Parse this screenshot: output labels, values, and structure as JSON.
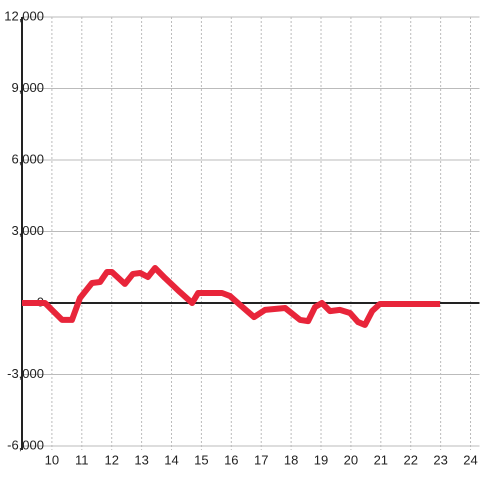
{
  "chart_data": {
    "type": "line",
    "x": [
      9,
      9.77,
      10.34,
      10.67,
      10.94,
      11.34,
      11.61,
      11.84,
      12.01,
      12.44,
      12.71,
      12.95,
      13.21,
      13.45,
      13.78,
      14.28,
      14.69,
      14.89,
      15.69,
      15.96,
      16.29,
      16.76,
      17.13,
      17.8,
      18.3,
      18.57,
      18.8,
      19.03,
      19.3,
      19.63,
      19.97,
      20.24,
      20.47,
      20.71,
      20.97,
      22.98
    ],
    "series": [
      {
        "color": "#e8253a",
        "values": [
          0,
          0,
          -710,
          -710,
          210,
          840,
          880,
          1300,
          1300,
          800,
          1220,
          1260,
          1090,
          1470,
          1050,
          460,
          0,
          420,
          420,
          290,
          -80,
          -590,
          -290,
          -210,
          -710,
          -760,
          -170,
          0,
          -340,
          -290,
          -420,
          -800,
          -920,
          -340,
          -40,
          -40
        ]
      }
    ],
    "xlim": [
      9,
      24.3
    ],
    "xticks": [
      10,
      11,
      12,
      13,
      14,
      15,
      16,
      17,
      18,
      19,
      20,
      21,
      22,
      23,
      24
    ],
    "ylim": [
      -6000,
      12000
    ],
    "yticks": [
      {
        "value": 12000,
        "label": "12,000"
      },
      {
        "value": 9000,
        "label": "9,000"
      },
      {
        "value": 6000,
        "label": "6,000"
      },
      {
        "value": 3000,
        "label": "3,000"
      },
      0,
      {
        "value": -3000,
        "label": "-3,000"
      },
      {
        "value": -6000,
        "label": "-6,000"
      }
    ],
    "grid": true
  }
}
